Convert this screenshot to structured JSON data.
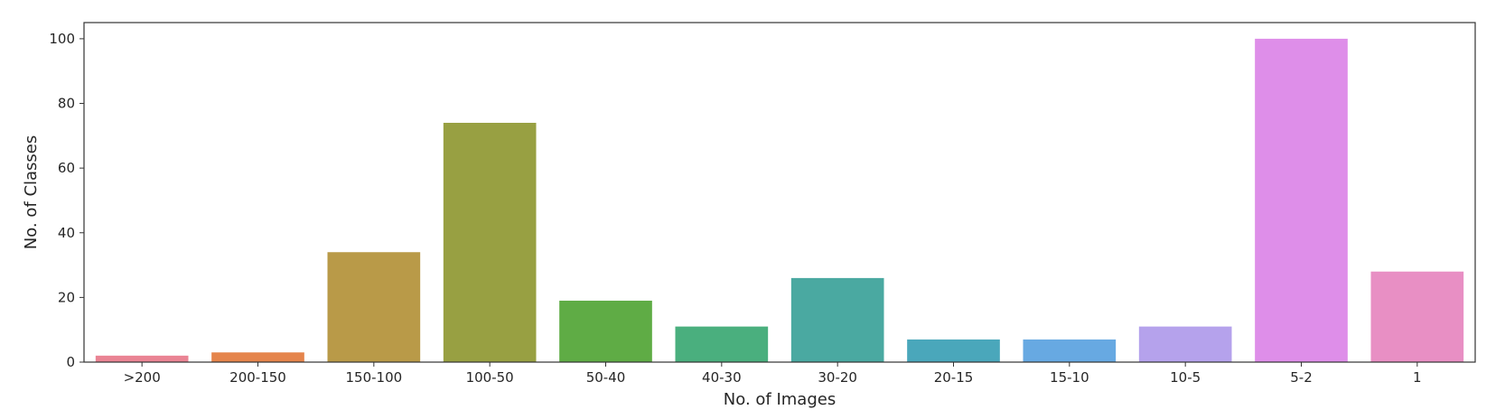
{
  "chart_data": {
    "type": "bar",
    "title": "",
    "xlabel": "No. of Images",
    "ylabel": "No. of Classes",
    "categories": [
      ">200",
      "200-150",
      "150-100",
      "100-50",
      "50-40",
      "40-30",
      "30-20",
      "20-15",
      "15-10",
      "10-5",
      "5-2",
      "1"
    ],
    "values": [
      2,
      3,
      34,
      74,
      19,
      11,
      26,
      7,
      7,
      11,
      100,
      28
    ],
    "colors": [
      "#ea8494",
      "#e5844b",
      "#b99a48",
      "#98a042",
      "#5fac45",
      "#4aaf7e",
      "#4aa9a1",
      "#4aa7bb",
      "#67a9e2",
      "#b5a2ec",
      "#de8ee9",
      "#e88fc4"
    ],
    "ylim": [
      0,
      105
    ],
    "yticks": [
      0,
      20,
      40,
      60,
      80,
      100
    ],
    "grid": false,
    "legend": "none"
  }
}
